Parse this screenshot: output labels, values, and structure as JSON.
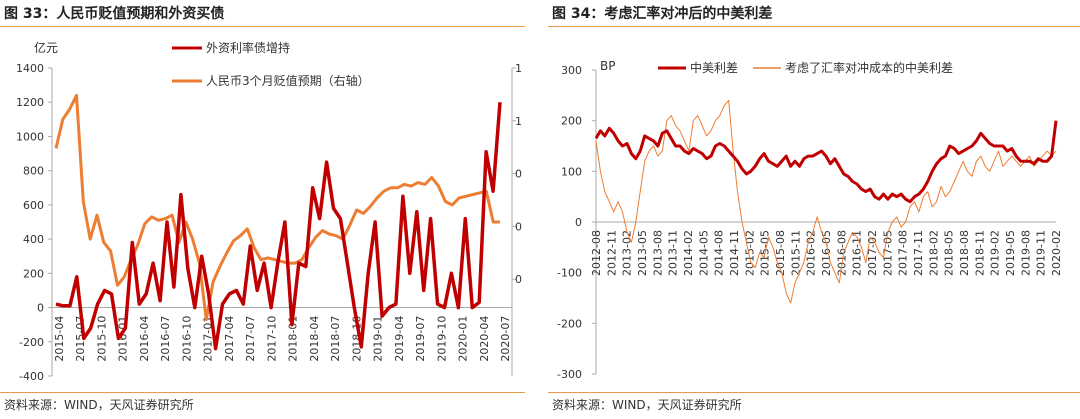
{
  "figures": [
    {
      "title": "图 33：人民币贬值预期和外资买债",
      "source": "资料来源：WIND，天风证券研究所"
    },
    {
      "title": "图 34：考虑汇率对冲后的中美利差",
      "source": "资料来源：WIND，天风证券研究所"
    }
  ],
  "colors": {
    "dark_red": "#c00000",
    "orange": "#ed7d31",
    "rule": "#e89a4a",
    "axis": "#999999"
  },
  "chart_data": [
    {
      "type": "line",
      "title": "",
      "y_unit_label": "亿元",
      "ylim": [
        -400,
        1400
      ],
      "y_ticks": [
        -400,
        -200,
        0,
        200,
        400,
        600,
        800,
        1000,
        1200,
        1400
      ],
      "right_axis_tick_labels": [
        "1",
        "1",
        "0",
        "0",
        "0"
      ],
      "x_tick_labels": [
        "2015-04",
        "2015-07",
        "2015-10",
        "2016-01",
        "2016-04",
        "2016-07",
        "2016-10",
        "2017-01",
        "2017-04",
        "2017-07",
        "2017-10",
        "2018-01",
        "2018-04",
        "2018-07",
        "2018-10",
        "2019-01",
        "2019-04",
        "2019-07",
        "2019-10",
        "2020-01",
        "2020-04",
        "2020-07"
      ],
      "legend_position": "top",
      "series": [
        {
          "name": "外资利率债增持",
          "axis": "left",
          "color": "#c00000",
          "values": [
            20,
            10,
            10,
            180,
            -180,
            -120,
            20,
            100,
            80,
            -180,
            -120,
            380,
            20,
            80,
            260,
            40,
            500,
            120,
            660,
            230,
            0,
            300,
            80,
            -240,
            20,
            80,
            100,
            20,
            360,
            100,
            260,
            0,
            270,
            500,
            -100,
            260,
            240,
            700,
            520,
            850,
            580,
            520,
            260,
            0,
            -230,
            200,
            500,
            -50,
            0,
            20,
            650,
            200,
            560,
            100,
            520,
            20,
            0,
            200,
            0,
            520,
            0,
            30,
            910,
            680,
            1200
          ]
        },
        {
          "name": "人民币3个月贬值预期（右轴）",
          "axis": "right",
          "color": "#ed7d31",
          "values": [
            930,
            1100,
            1160,
            1240,
            620,
            400,
            540,
            380,
            330,
            130,
            180,
            280,
            370,
            490,
            530,
            510,
            520,
            540,
            380,
            500,
            400,
            260,
            -70,
            150,
            240,
            320,
            390,
            420,
            460,
            350,
            280,
            290,
            280,
            270,
            260,
            260,
            280,
            350,
            410,
            450,
            430,
            420,
            400,
            480,
            570,
            550,
            590,
            640,
            680,
            700,
            700,
            720,
            710,
            730,
            720,
            760,
            710,
            620,
            600,
            640,
            650,
            660,
            670,
            680,
            500,
            500
          ]
        }
      ]
    },
    {
      "type": "line",
      "title": "",
      "ylabel": "BP",
      "ylim": [
        -300,
        300
      ],
      "y_ticks": [
        -300,
        -200,
        -100,
        0,
        100,
        200,
        300
      ],
      "x_tick_labels": [
        "2012-08",
        "2012-11",
        "2013-02",
        "2013-05",
        "2013-08",
        "2013-11",
        "2014-02",
        "2014-05",
        "2014-08",
        "2014-11",
        "2015-02",
        "2015-05",
        "2015-08",
        "2015-11",
        "2016-02",
        "2016-05",
        "2016-08",
        "2016-11",
        "2017-02",
        "2017-05",
        "2017-08",
        "2017-11",
        "2018-02",
        "2018-05",
        "2018-08",
        "2018-11",
        "2019-02",
        "2019-05",
        "2019-08",
        "2019-11",
        "2020-02"
      ],
      "legend_position": "top",
      "series": [
        {
          "name": "中美利差",
          "color": "#c00000",
          "values": [
            165,
            180,
            170,
            185,
            175,
            160,
            150,
            155,
            135,
            125,
            140,
            170,
            165,
            160,
            150,
            175,
            180,
            165,
            150,
            150,
            140,
            135,
            145,
            140,
            135,
            125,
            130,
            150,
            155,
            150,
            140,
            130,
            120,
            105,
            95,
            100,
            110,
            125,
            135,
            120,
            115,
            110,
            120,
            130,
            110,
            120,
            110,
            125,
            130,
            130,
            135,
            140,
            130,
            115,
            125,
            110,
            95,
            90,
            80,
            75,
            65,
            60,
            65,
            50,
            45,
            55,
            45,
            55,
            50,
            55,
            45,
            40,
            50,
            55,
            65,
            80,
            100,
            115,
            125,
            130,
            150,
            145,
            135,
            140,
            145,
            150,
            160,
            175,
            165,
            155,
            150,
            150,
            150,
            140,
            145,
            130,
            120,
            120,
            120,
            115,
            125,
            120,
            120,
            130,
            200
          ]
        },
        {
          "name": "考虑了汇率对冲成本的中美利差",
          "color": "#ed7d31",
          "values": [
            160,
            100,
            60,
            40,
            20,
            40,
            20,
            -20,
            -40,
            0,
            60,
            120,
            140,
            150,
            130,
            140,
            200,
            210,
            190,
            180,
            160,
            140,
            200,
            210,
            190,
            170,
            180,
            200,
            210,
            230,
            240,
            140,
            60,
            0,
            -40,
            -80,
            -90,
            -60,
            -70,
            -30,
            -50,
            -80,
            -100,
            -140,
            -160,
            -120,
            -100,
            -80,
            -40,
            -20,
            10,
            -20,
            -40,
            -80,
            -100,
            -120,
            -60,
            -40,
            -20,
            -30,
            -50,
            -80,
            -30,
            -40,
            -60,
            -70,
            -20,
            0,
            10,
            -10,
            0,
            30,
            40,
            20,
            50,
            60,
            30,
            40,
            70,
            50,
            60,
            80,
            100,
            120,
            100,
            90,
            120,
            130,
            110,
            100,
            120,
            140,
            110,
            120,
            130,
            120,
            110,
            120,
            130,
            110,
            120,
            130,
            140,
            130,
            140
          ]
        }
      ]
    }
  ]
}
